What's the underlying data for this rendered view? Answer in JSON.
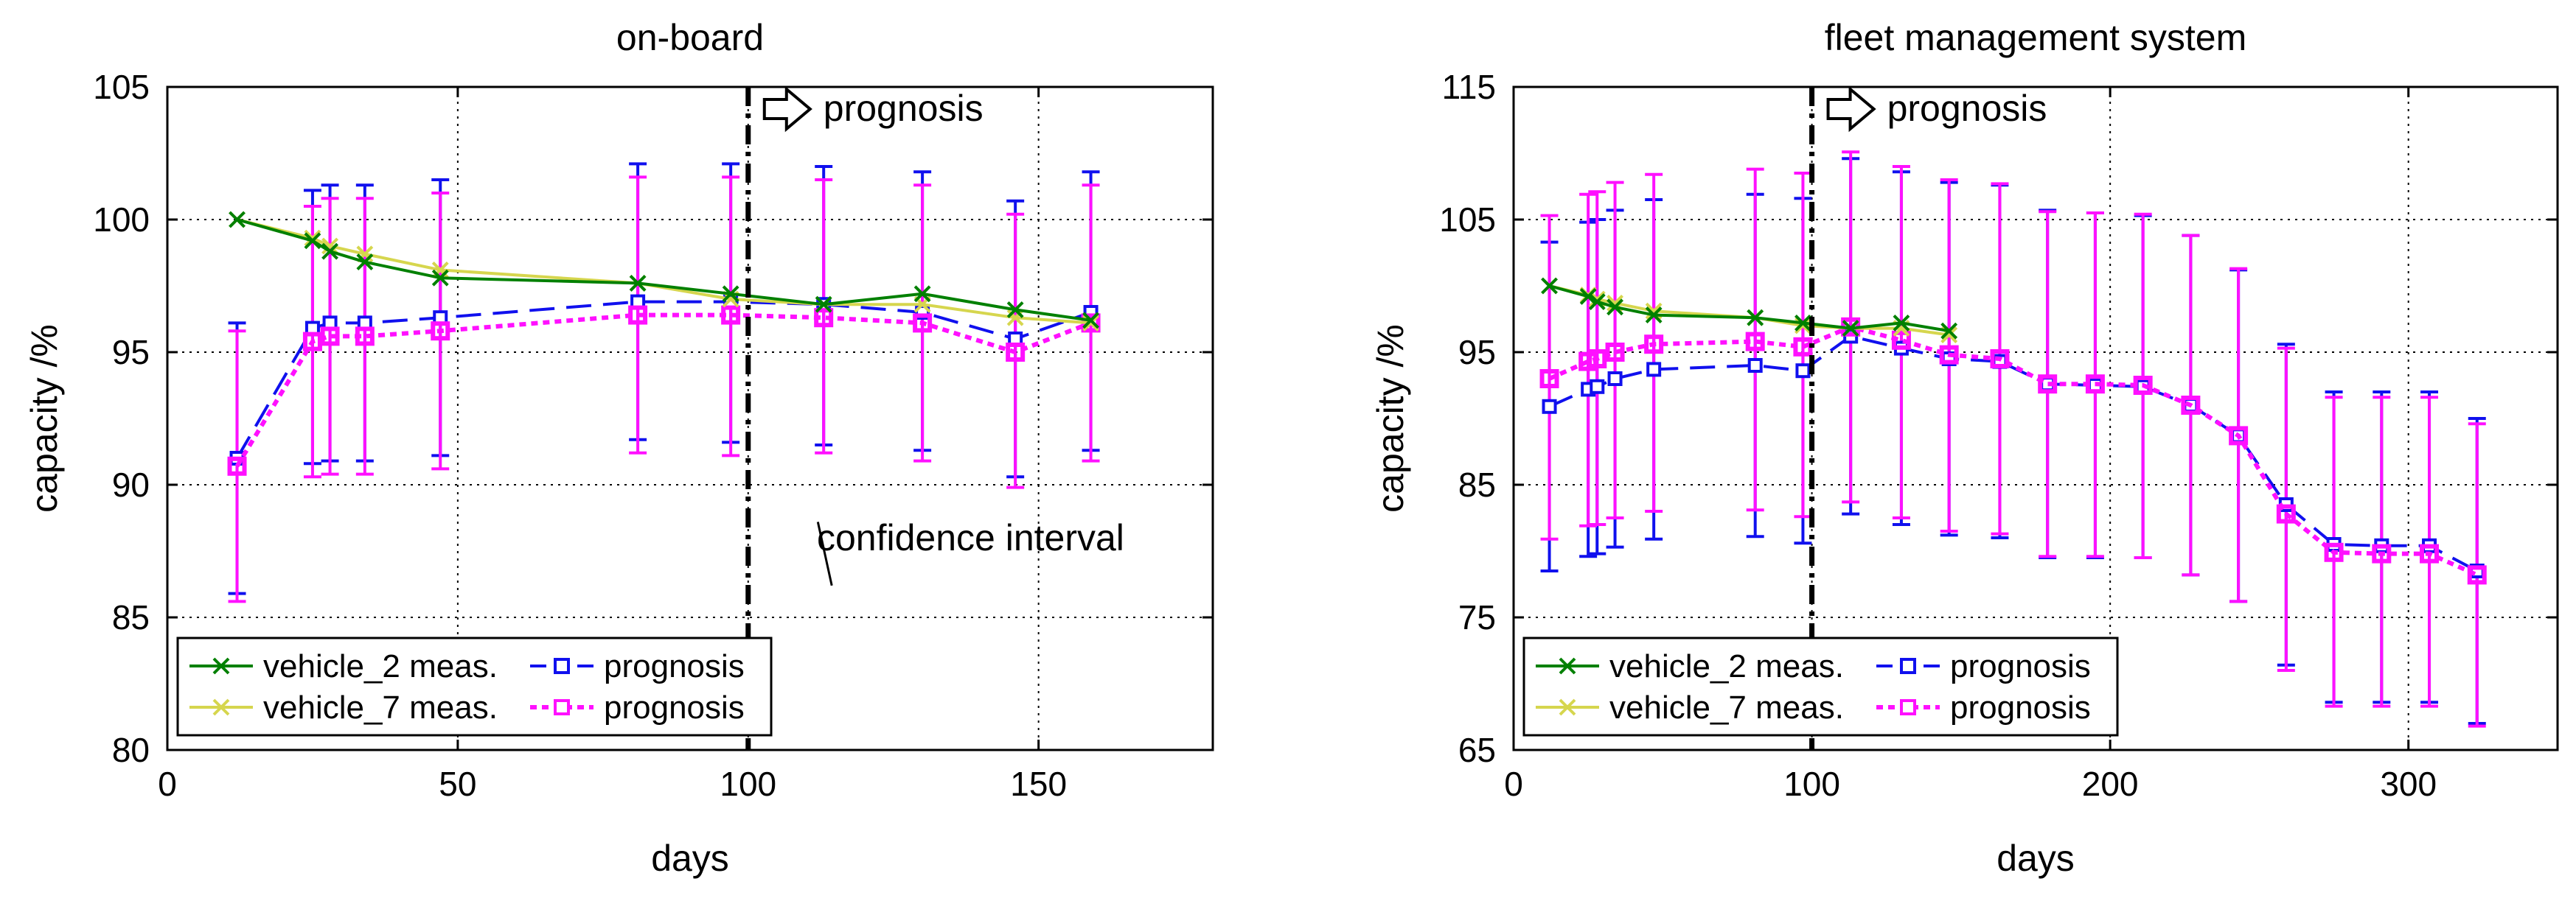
{
  "chart_data": [
    {
      "type": "line",
      "title": "on-board",
      "xlabel": "days",
      "ylabel": "capacity /%",
      "xlim": [
        0,
        180
      ],
      "ylim": [
        80,
        105
      ],
      "xticks": [
        0,
        50,
        100,
        150
      ],
      "yticks": [
        80,
        85,
        90,
        95,
        100,
        105
      ],
      "grid": true,
      "legend_position": "bottom-left",
      "cut_line_x": 100,
      "annotations": {
        "prognosis": "prognosis",
        "confidence": "confidence interval"
      },
      "series": [
        {
          "name": "vehicle_2 meas.",
          "color": "#008000",
          "style": "solid",
          "marker": "x",
          "x": [
            12,
            25,
            28,
            34,
            47,
            81,
            97,
            113,
            130,
            146,
            159
          ],
          "y": [
            100,
            99.2,
            98.8,
            98.4,
            97.8,
            97.6,
            97.2,
            96.8,
            97.2,
            96.6,
            96.2
          ]
        },
        {
          "name": "prognosis",
          "legend_group": 0,
          "color": "#1010ee",
          "style": "dashed",
          "marker": "square",
          "x": [
            12,
            25,
            28,
            34,
            47,
            81,
            97,
            113,
            130,
            146,
            159
          ],
          "y": [
            91.0,
            95.9,
            96.1,
            96.1,
            96.3,
            96.9,
            96.9,
            96.8,
            96.5,
            95.5,
            96.5
          ],
          "ci_low": [
            85.9,
            90.8,
            90.9,
            90.9,
            91.1,
            91.7,
            91.6,
            91.5,
            91.3,
            90.3,
            91.3
          ],
          "ci_high": [
            96.1,
            101.1,
            101.3,
            101.3,
            101.5,
            102.1,
            102.1,
            102.0,
            101.8,
            100.7,
            101.8
          ]
        },
        {
          "name": "vehicle_7 meas.",
          "color": "#d6d64e",
          "style": "solid",
          "marker": "x",
          "x": [
            12,
            25,
            28,
            34,
            47,
            81,
            97,
            113,
            130,
            146,
            159
          ],
          "y": [
            100,
            99.3,
            99.0,
            98.7,
            98.1,
            97.6,
            97.0,
            96.8,
            96.8,
            96.3,
            96.1
          ]
        },
        {
          "name": "prognosis",
          "legend_group": 1,
          "color": "#ff10ff",
          "style": "dotted",
          "marker": "square",
          "x": [
            12,
            25,
            28,
            34,
            47,
            81,
            97,
            113,
            130,
            146,
            159
          ],
          "y": [
            90.7,
            95.4,
            95.6,
            95.6,
            95.8,
            96.4,
            96.4,
            96.3,
            96.1,
            95.0,
            96.1
          ],
          "ci_low": [
            85.6,
            90.3,
            90.4,
            90.4,
            90.6,
            91.2,
            91.1,
            91.2,
            90.9,
            89.9,
            90.9
          ],
          "ci_high": [
            95.8,
            100.5,
            100.8,
            100.8,
            101.0,
            101.6,
            101.6,
            101.5,
            101.3,
            100.2,
            101.3
          ]
        }
      ]
    },
    {
      "type": "line",
      "title": "fleet management system",
      "xlabel": "days",
      "ylabel": "capacity /%",
      "xlim": [
        0,
        350
      ],
      "ylim": [
        65,
        115
      ],
      "xticks": [
        0,
        100,
        200,
        300
      ],
      "yticks": [
        65,
        75,
        85,
        95,
        105,
        115
      ],
      "grid": true,
      "legend_position": "bottom-left",
      "cut_line_x": 100,
      "annotations": {
        "prognosis": "prognosis"
      },
      "series": [
        {
          "name": "vehicle_2 meas.",
          "color": "#008000",
          "style": "solid",
          "marker": "x",
          "x": [
            12,
            25,
            28,
            34,
            47,
            81,
            97,
            113,
            130,
            146
          ],
          "y": [
            100,
            99.2,
            98.8,
            98.4,
            97.8,
            97.6,
            97.2,
            96.8,
            97.2,
            96.6
          ]
        },
        {
          "name": "prognosis",
          "legend_group": 0,
          "color": "#1010ee",
          "style": "dashed",
          "marker": "square",
          "x": [
            12,
            25,
            28,
            34,
            47,
            81,
            97,
            113,
            130,
            146,
            163,
            179,
            195,
            211,
            227,
            243,
            259,
            275,
            291,
            307,
            323
          ],
          "y": [
            90.9,
            92.2,
            92.4,
            93.0,
            93.7,
            94.0,
            93.6,
            96.2,
            95.3,
            94.5,
            94.3,
            92.6,
            92.5,
            92.4,
            91.0,
            88.7,
            83.5,
            80.5,
            80.4,
            80.4,
            78.5
          ],
          "ci_low": [
            78.5,
            79.6,
            79.8,
            80.3,
            80.9,
            81.1,
            80.6,
            82.8,
            82.0,
            81.2,
            81.0,
            79.5,
            79.5,
            79.5,
            78.2,
            76.2,
            71.4,
            68.6,
            68.6,
            68.6,
            67.0
          ],
          "ci_high": [
            103.3,
            104.8,
            105.0,
            105.7,
            106.5,
            106.9,
            106.6,
            109.6,
            108.6,
            107.8,
            107.6,
            105.7,
            105.5,
            105.3,
            103.8,
            101.2,
            95.6,
            92.0,
            92.0,
            92.0,
            90.0
          ]
        },
        {
          "name": "vehicle_7 meas.",
          "color": "#d6d64e",
          "style": "solid",
          "marker": "x",
          "x": [
            12,
            25,
            28,
            34,
            47,
            81,
            97,
            113,
            130,
            146
          ],
          "y": [
            100,
            99.3,
            99.0,
            98.7,
            98.1,
            97.6,
            97.0,
            96.8,
            96.8,
            96.3
          ]
        },
        {
          "name": "prognosis",
          "legend_group": 1,
          "color": "#ff10ff",
          "style": "dotted",
          "marker": "square",
          "x": [
            12,
            25,
            28,
            34,
            47,
            81,
            97,
            113,
            130,
            146,
            163,
            179,
            195,
            211,
            227,
            243,
            259,
            275,
            291,
            307,
            323
          ],
          "y": [
            93.0,
            94.3,
            94.5,
            95.0,
            95.6,
            95.8,
            95.4,
            96.9,
            95.9,
            94.8,
            94.5,
            92.6,
            92.6,
            92.5,
            91.0,
            88.7,
            82.8,
            79.9,
            79.8,
            79.8,
            78.2
          ],
          "ci_low": [
            80.9,
            81.9,
            82.0,
            82.5,
            83.0,
            83.1,
            82.6,
            83.7,
            82.5,
            81.5,
            81.3,
            79.6,
            79.6,
            79.5,
            78.2,
            76.2,
            71.0,
            68.3,
            68.3,
            68.3,
            66.8
          ],
          "ci_high": [
            105.3,
            106.9,
            107.1,
            107.8,
            108.4,
            108.8,
            108.5,
            110.1,
            109.0,
            108.0,
            107.7,
            105.6,
            105.5,
            105.4,
            103.8,
            101.3,
            95.3,
            91.6,
            91.6,
            91.6,
            89.6
          ]
        }
      ]
    }
  ]
}
